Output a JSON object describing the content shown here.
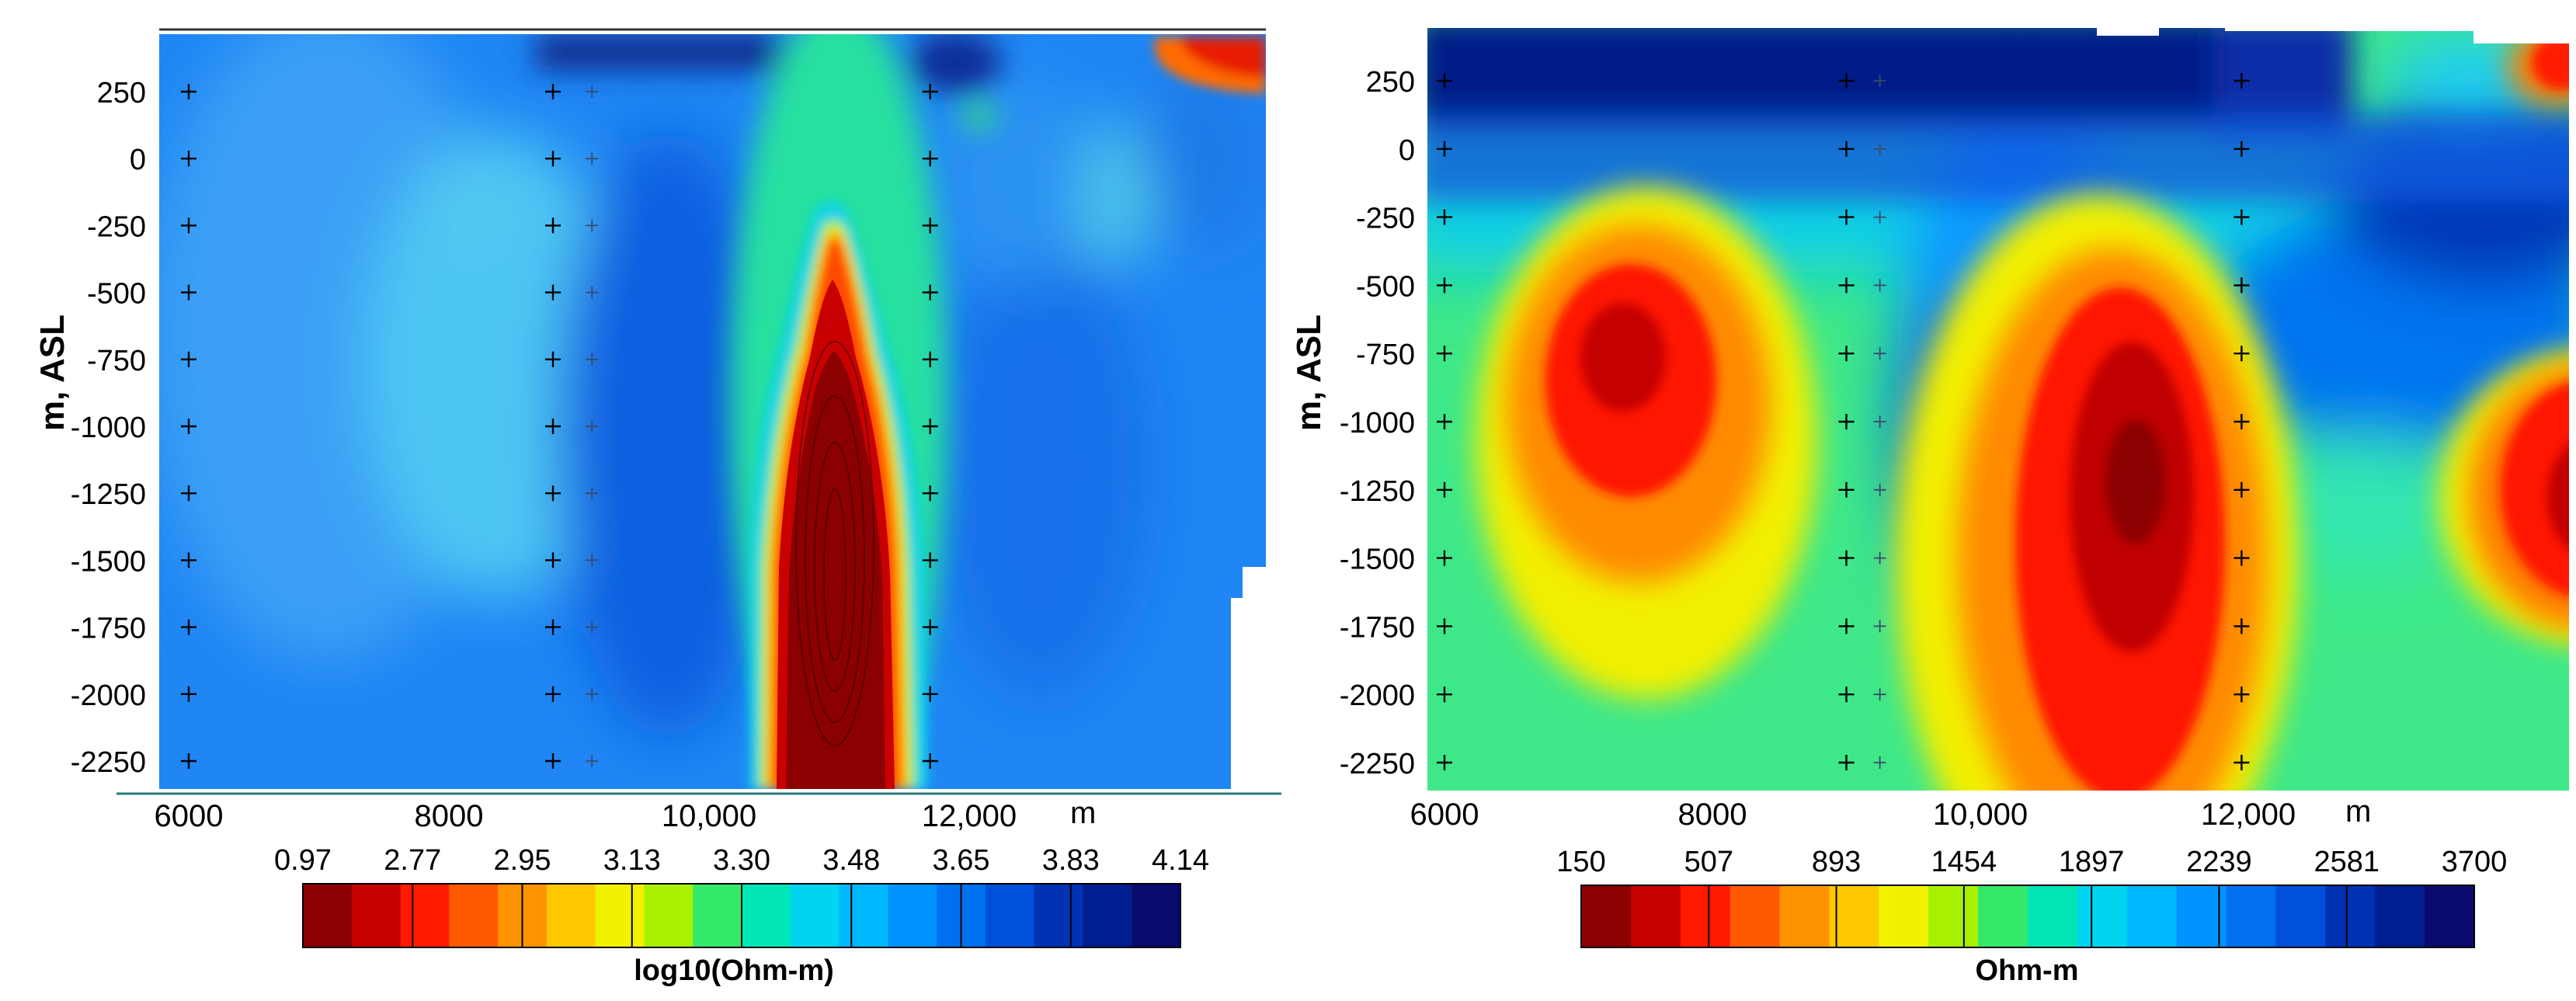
{
  "figure": "Two resistivity depth sections side by side",
  "chart_data": [
    {
      "type": "heatmap",
      "panel": "left",
      "ylabel": "m, ASL",
      "xlabel": "m",
      "y_ticks": [
        "250",
        "0",
        "-250",
        "-500",
        "-750",
        "-1000",
        "-1250",
        "-1500",
        "-1750",
        "-2000",
        "-2250"
      ],
      "y_values": [
        250,
        0,
        -250,
        -500,
        -750,
        -1000,
        -1250,
        -1500,
        -1750,
        -2000,
        -2250
      ],
      "x_ticks": [
        "6000",
        "8000",
        "10,000",
        "12,000"
      ],
      "x_values": [
        6000,
        8000,
        10000,
        12000
      ],
      "xlim": [
        5800,
        13500
      ],
      "ylim": [
        -2350,
        450
      ],
      "station_x": [
        6000,
        8800,
        9100,
        11700
      ],
      "colorbar": {
        "title": "log10(Ohm-m)",
        "tick_labels": [
          "0.97",
          "2.77",
          "2.95",
          "3.13",
          "3.30",
          "3.48",
          "3.65",
          "3.83",
          "4.14"
        ],
        "colors": [
          "#8b0000",
          "#c40000",
          "#ff1a00",
          "#ff5a00",
          "#ff9400",
          "#ffc800",
          "#f2f200",
          "#a8f000",
          "#34e86a",
          "#00e6b5",
          "#00d4ee",
          "#00b8ff",
          "#0094ff",
          "#0070f0",
          "#0050dc",
          "#0032b4",
          "#001e90",
          "#0a0a6e"
        ]
      },
      "features": {
        "background_value": 3.6,
        "conductor_center_x": 10950,
        "conductor_top_y": -300,
        "conductor_value": 0.97,
        "high_res_zone_x": 9300
      }
    },
    {
      "type": "heatmap",
      "panel": "right",
      "ylabel": "m, ASL",
      "xlabel": "m",
      "y_ticks": [
        "250",
        "0",
        "-250",
        "-500",
        "-750",
        "-1000",
        "-1250",
        "-1500",
        "-1750",
        "-2000",
        "-2250"
      ],
      "y_values": [
        250,
        0,
        -250,
        -500,
        -750,
        -1000,
        -1250,
        -1500,
        -1750,
        -2000,
        -2250
      ],
      "x_ticks": [
        "6000",
        "8000",
        "10,000",
        "12,000"
      ],
      "x_values": [
        6000,
        8000,
        10000,
        12000
      ],
      "xlim": [
        6000,
        13700
      ],
      "ylim": [
        -2350,
        450
      ],
      "station_x": [
        6000,
        9000,
        9250,
        11950
      ],
      "colorbar": {
        "title": "Ohm-m",
        "tick_labels": [
          "150",
          "507",
          "893",
          "1454",
          "1897",
          "2239",
          "2581",
          "3700"
        ],
        "colors": [
          "#8b0000",
          "#c40000",
          "#ff1a00",
          "#ff5a00",
          "#ff9400",
          "#ffc800",
          "#f2f200",
          "#a8f000",
          "#34e86a",
          "#00e6b5",
          "#00d4ee",
          "#00b8ff",
          "#0094ff",
          "#0070f0",
          "#0050dc",
          "#0032b4",
          "#001e90",
          "#0a0a6e"
        ]
      },
      "features": {
        "low_res_body_1_x": 7300,
        "low_res_body_2_x": 10950,
        "low_res_body_3_x": 13600,
        "surface_high_res_layer_y": 200
      }
    }
  ]
}
